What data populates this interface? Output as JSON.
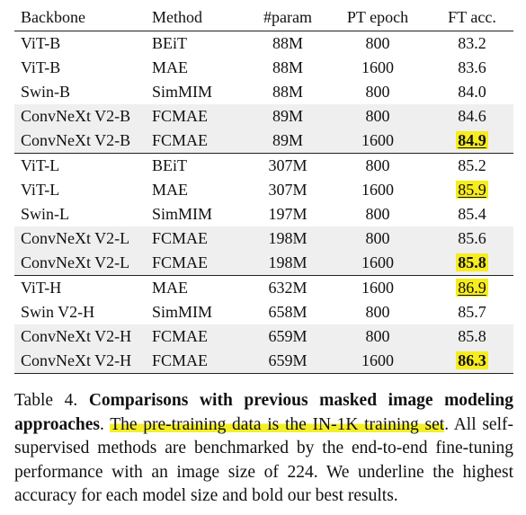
{
  "table": {
    "headers": [
      "Backbone",
      "Method",
      "#param",
      "PT epoch",
      "FT acc."
    ],
    "rows": [
      {
        "backbone": "ViT-B",
        "method": "BEiT",
        "param": "88M",
        "epoch": "800",
        "acc": "83.2",
        "shade": false,
        "top_border": false,
        "acc_style": "none"
      },
      {
        "backbone": "ViT-B",
        "method": "MAE",
        "param": "88M",
        "epoch": "1600",
        "acc": "83.6",
        "shade": false,
        "top_border": false,
        "acc_style": "none"
      },
      {
        "backbone": "Swin-B",
        "method": "SimMIM",
        "param": "88M",
        "epoch": "800",
        "acc": "84.0",
        "shade": false,
        "top_border": false,
        "acc_style": "none"
      },
      {
        "backbone": "ConvNeXt V2-B",
        "method": "FCMAE",
        "param": "89M",
        "epoch": "800",
        "acc": "84.6",
        "shade": true,
        "top_border": false,
        "acc_style": "none"
      },
      {
        "backbone": "ConvNeXt V2-B",
        "method": "FCMAE",
        "param": "89M",
        "epoch": "1600",
        "acc": "84.9",
        "shade": true,
        "top_border": false,
        "acc_style": "bold-underline-highlight"
      },
      {
        "backbone": "ViT-L",
        "method": "BEiT",
        "param": "307M",
        "epoch": "800",
        "acc": "85.2",
        "shade": false,
        "top_border": true,
        "acc_style": "none"
      },
      {
        "backbone": "ViT-L",
        "method": "MAE",
        "param": "307M",
        "epoch": "1600",
        "acc": "85.9",
        "shade": false,
        "top_border": false,
        "acc_style": "underline-highlight"
      },
      {
        "backbone": "Swin-L",
        "method": "SimMIM",
        "param": "197M",
        "epoch": "800",
        "acc": "85.4",
        "shade": false,
        "top_border": false,
        "acc_style": "none"
      },
      {
        "backbone": "ConvNeXt V2-L",
        "method": "FCMAE",
        "param": "198M",
        "epoch": "800",
        "acc": "85.6",
        "shade": true,
        "top_border": false,
        "acc_style": "none"
      },
      {
        "backbone": "ConvNeXt V2-L",
        "method": "FCMAE",
        "param": "198M",
        "epoch": "1600",
        "acc": "85.8",
        "shade": true,
        "top_border": false,
        "acc_style": "bold-highlight"
      },
      {
        "backbone": "ViT-H",
        "method": "MAE",
        "param": "632M",
        "epoch": "1600",
        "acc": "86.9",
        "shade": false,
        "top_border": true,
        "acc_style": "underline-highlight"
      },
      {
        "backbone": "Swin V2-H",
        "method": "SimMIM",
        "param": "658M",
        "epoch": "800",
        "acc": "85.7",
        "shade": false,
        "top_border": false,
        "acc_style": "none"
      },
      {
        "backbone": "ConvNeXt V2-H",
        "method": "FCMAE",
        "param": "659M",
        "epoch": "800",
        "acc": "85.8",
        "shade": true,
        "top_border": false,
        "acc_style": "none"
      },
      {
        "backbone": "ConvNeXt V2-H",
        "method": "FCMAE",
        "param": "659M",
        "epoch": "1600",
        "acc": "86.3",
        "shade": true,
        "top_border": false,
        "acc_style": "bold-highlight"
      }
    ]
  },
  "caption": {
    "label": "Table 4.",
    "title": "Comparisons with previous masked image modeling approaches",
    "period": ".",
    "highlighted": "The pre-training data is the IN-1K training set",
    "rest": ". All self-supervised methods are benchmarked by the end-to-end fine-tuning performance with an image size of 224. We underline the highest accuracy for each model size and bold our best results."
  },
  "colors": {
    "highlight": "#f7ec1e",
    "shade": "#efefef"
  }
}
